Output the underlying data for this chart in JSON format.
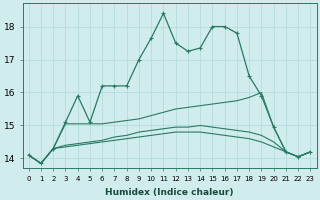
{
  "xlabel": "Humidex (Indice chaleur)",
  "x": [
    0,
    1,
    2,
    3,
    4,
    5,
    6,
    7,
    8,
    9,
    10,
    11,
    12,
    13,
    14,
    15,
    16,
    17,
    18,
    19,
    20,
    21,
    22,
    23
  ],
  "line1": [
    14.1,
    13.85,
    14.3,
    15.1,
    15.9,
    15.1,
    16.2,
    16.2,
    16.2,
    17.0,
    17.65,
    18.4,
    17.5,
    17.25,
    17.35,
    18.0,
    18.0,
    17.8,
    16.5,
    15.9,
    14.95,
    14.2,
    14.05,
    14.2
  ],
  "line2": [
    14.1,
    13.85,
    14.3,
    15.05,
    15.05,
    15.05,
    15.05,
    15.1,
    15.15,
    15.2,
    15.3,
    15.4,
    15.5,
    15.55,
    15.6,
    15.65,
    15.7,
    15.75,
    15.85,
    16.0,
    14.95,
    14.2,
    14.05,
    14.2
  ],
  "line3": [
    14.1,
    13.85,
    14.3,
    14.4,
    14.45,
    14.5,
    14.55,
    14.65,
    14.7,
    14.8,
    14.85,
    14.9,
    14.95,
    14.95,
    15.0,
    14.95,
    14.9,
    14.85,
    14.8,
    14.7,
    14.5,
    14.2,
    14.05,
    14.2
  ],
  "line4": [
    14.1,
    13.85,
    14.3,
    14.35,
    14.4,
    14.45,
    14.5,
    14.55,
    14.6,
    14.65,
    14.7,
    14.75,
    14.8,
    14.8,
    14.8,
    14.75,
    14.7,
    14.65,
    14.6,
    14.5,
    14.35,
    14.2,
    14.05,
    14.2
  ],
  "line_color": "#2a7a62",
  "bg_color": "#d0ecec",
  "grid_color": "#b0d8d8",
  "ylim": [
    13.7,
    18.7
  ],
  "yticks": [
    14,
    15,
    16,
    17,
    18
  ],
  "markersize": 2.5
}
